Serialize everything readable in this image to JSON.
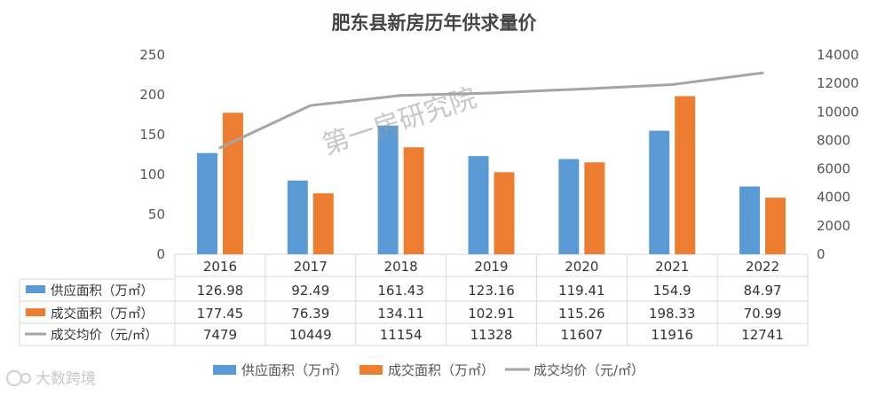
{
  "chart_data": {
    "type": "bar",
    "title": "肥东县新房历年供求量价",
    "categories": [
      "2016",
      "2017",
      "2018",
      "2019",
      "2020",
      "2021",
      "2022"
    ],
    "series": [
      {
        "name": "供应面积（万㎡）",
        "type": "bar",
        "axis": "left",
        "color": "#5b9bd5",
        "values": [
          126.98,
          92.49,
          161.43,
          123.16,
          119.41,
          154.9,
          84.97
        ],
        "labels": [
          "126.98",
          "92.49",
          "161.43",
          "123.16",
          "119.41",
          "154.9",
          "84.97"
        ]
      },
      {
        "name": "成交面积（万㎡）",
        "type": "bar",
        "axis": "left",
        "color": "#ed7d31",
        "values": [
          177.45,
          76.39,
          134.11,
          102.91,
          115.26,
          198.33,
          70.99
        ],
        "labels": [
          "177.45",
          "76.39",
          "134.11",
          "102.91",
          "115.26",
          "198.33",
          "70.99"
        ]
      },
      {
        "name": "成交均价（元/㎡）",
        "type": "line",
        "axis": "right",
        "color": "#a5a5a5",
        "values": [
          7479,
          10449,
          11154,
          11328,
          11607,
          11916,
          12741
        ],
        "labels": [
          "7479",
          "10449",
          "11154",
          "11328",
          "11607",
          "11916",
          "12741"
        ]
      }
    ],
    "y_left": {
      "min": 0,
      "max": 250,
      "ticks": [
        "0",
        "50",
        "100",
        "150",
        "200",
        "250"
      ]
    },
    "y_right": {
      "min": 0,
      "max": 14000,
      "ticks": [
        "0",
        "2000",
        "4000",
        "6000",
        "8000",
        "10000",
        "12000",
        "14000"
      ]
    },
    "legend_position": "bottom",
    "data_table": true
  },
  "watermark": "第一房研究院",
  "brand": "大数跨境"
}
